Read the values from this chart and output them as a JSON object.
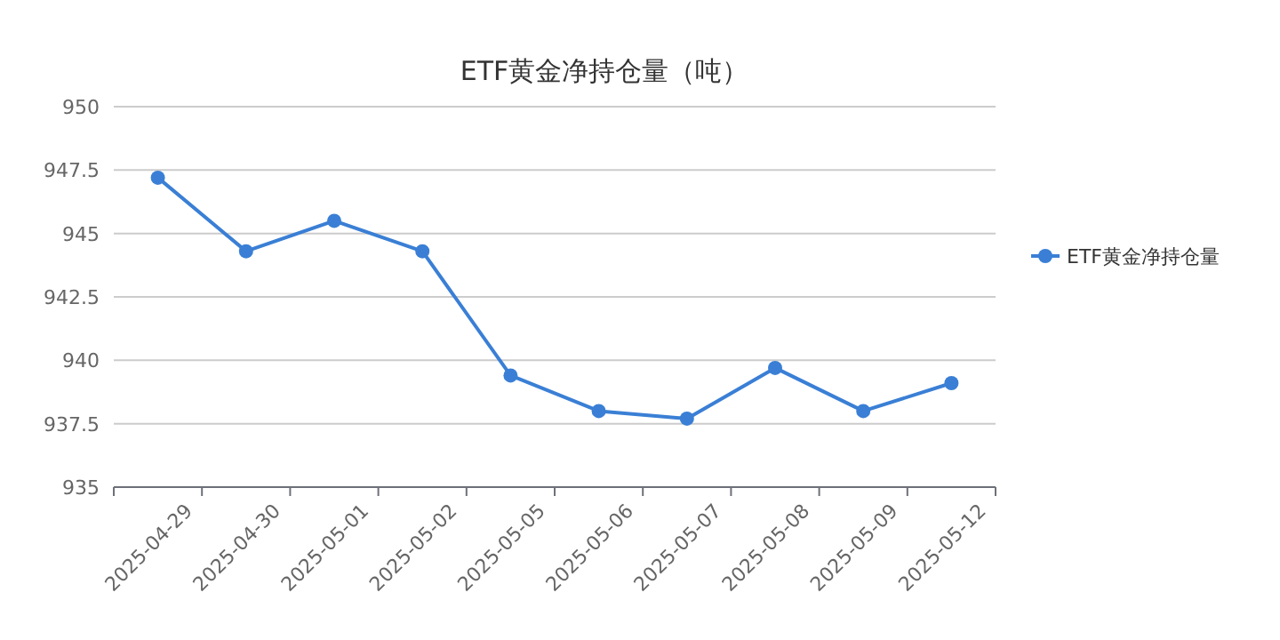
{
  "chart_data": {
    "type": "line",
    "title": "ETF黄金净持仓量（吨）",
    "categories": [
      "2025-04-29",
      "2025-04-30",
      "2025-05-01",
      "2025-05-02",
      "2025-05-05",
      "2025-05-06",
      "2025-05-07",
      "2025-05-08",
      "2025-05-09",
      "2025-05-12"
    ],
    "series": [
      {
        "name": "ETF黄金净持仓量",
        "color": "#3a7fd5",
        "values": [
          947.2,
          944.3,
          945.5,
          944.3,
          939.4,
          938.0,
          937.7,
          939.7,
          938.0,
          939.1
        ]
      }
    ],
    "ylim": [
      935,
      950
    ],
    "yticks": [
      935,
      937.5,
      940,
      942.5,
      945,
      947.5,
      950
    ],
    "grid": "y",
    "legend": "right",
    "marker": "circle",
    "line_style": "solid"
  }
}
